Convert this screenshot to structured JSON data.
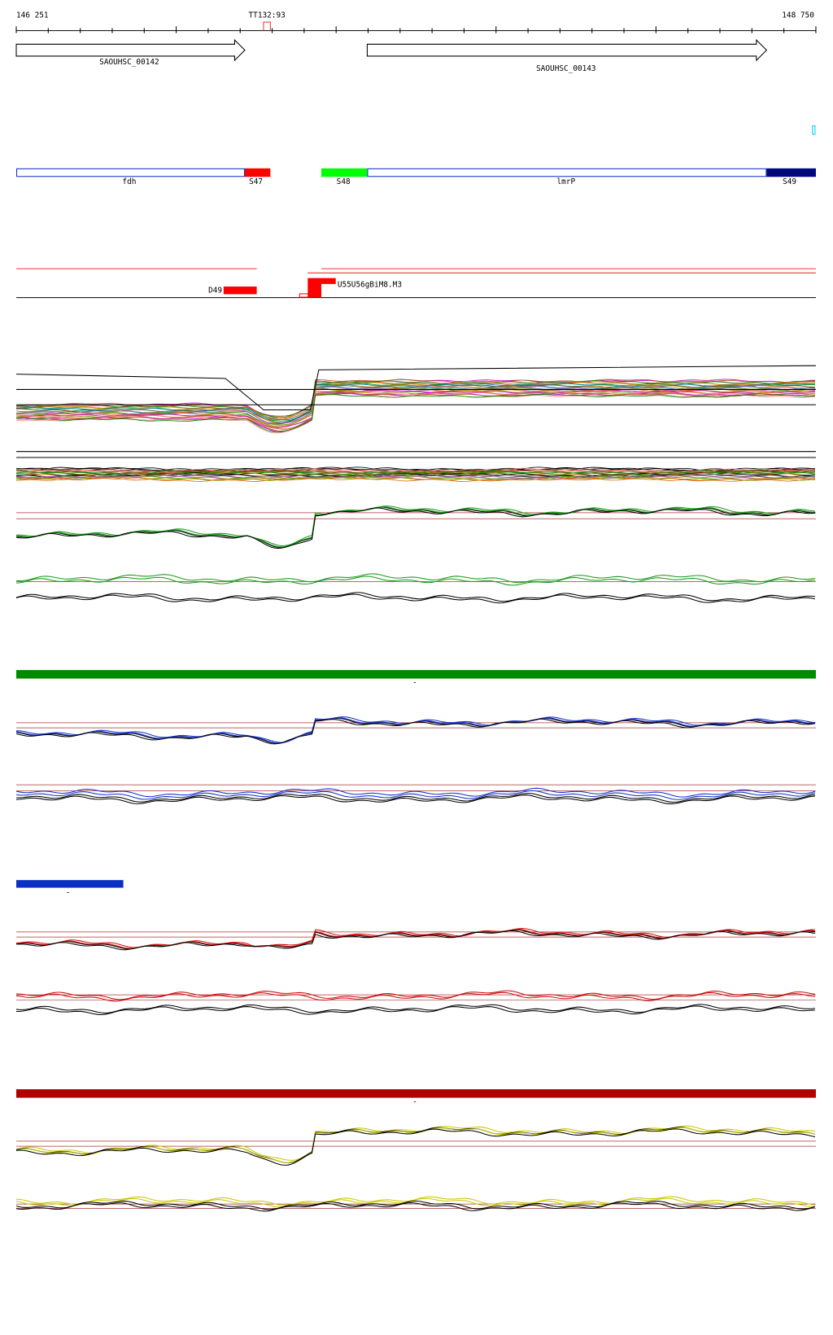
{
  "ruler": {
    "start": "146 251",
    "end": "148 750",
    "marker": "TT132:93"
  },
  "genes": [
    "SAOUHSC_00142",
    "SAOUHSC_00143"
  ],
  "segments": [
    "fdh",
    "S47",
    "S48",
    "lmrP",
    "S49"
  ],
  "features": {
    "deletion": "D49",
    "cluster": "U55U56gBiM8.M3"
  },
  "bars": [
    "-",
    "-",
    "-"
  ]
}
